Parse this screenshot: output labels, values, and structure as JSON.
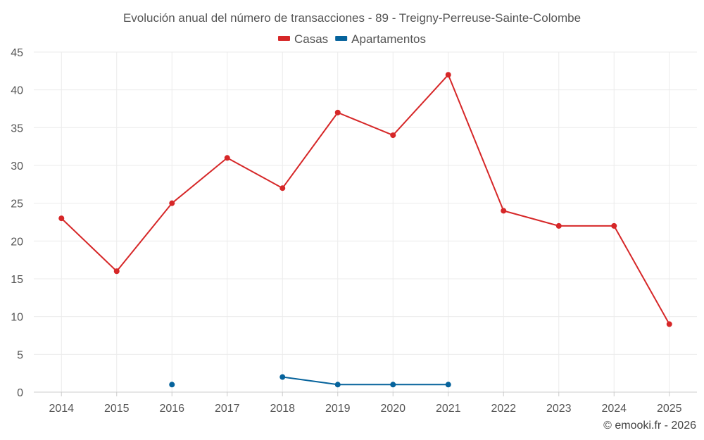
{
  "chart_data": {
    "type": "line",
    "title": "Evolución anual del número de transacciones - 89 - Treigny-Perreuse-Sainte-Colombe",
    "categories": [
      "2014",
      "2015",
      "2016",
      "2017",
      "2018",
      "2019",
      "2020",
      "2021",
      "2022",
      "2023",
      "2024",
      "2025"
    ],
    "ylim": [
      0,
      45
    ],
    "yticks": [
      0,
      5,
      10,
      15,
      20,
      25,
      30,
      35,
      40,
      45
    ],
    "grid": true,
    "legend_position": "top-center",
    "series": [
      {
        "name": "Casas",
        "color": "#d62728",
        "values": [
          23,
          16,
          25,
          31,
          27,
          37,
          34,
          42,
          24,
          22,
          22,
          9
        ]
      },
      {
        "name": "Apartamentos",
        "color": "#06639c",
        "values": [
          null,
          null,
          1,
          null,
          2,
          1,
          1,
          1,
          null,
          null,
          null,
          null
        ]
      }
    ]
  },
  "credit": "© emooki.fr - 2026"
}
